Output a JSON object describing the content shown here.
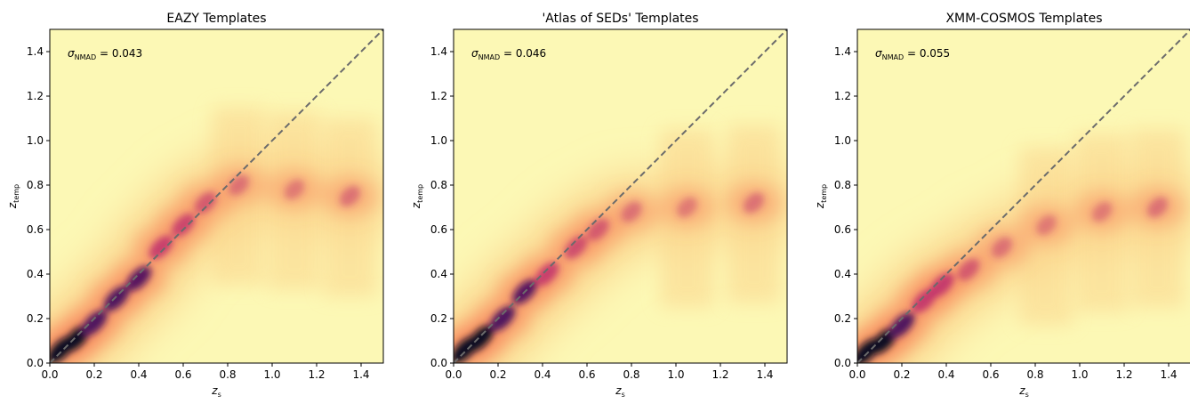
{
  "chart_data": [
    {
      "type": "heatmap",
      "title": "EAZY Templates",
      "xlabel": "z",
      "xlabel_sub": "s",
      "ylabel": "z",
      "ylabel_sub": "temp",
      "xlim": [
        0,
        1.5
      ],
      "ylim": [
        0,
        1.5
      ],
      "xticks": [
        "0.0",
        "0.2",
        "0.4",
        "0.6",
        "0.8",
        "1.0",
        "1.2",
        "1.4"
      ],
      "yticks": [
        "0.0",
        "0.2",
        "0.4",
        "0.6",
        "0.8",
        "1.0",
        "1.2",
        "1.4"
      ],
      "annotation": {
        "symbol": "σ",
        "sub": "NMAD",
        "text": " = 0.043"
      },
      "one_to_one_line": [
        [
          0,
          0
        ],
        [
          1.5,
          1.5
        ]
      ],
      "density_ridge": [
        {
          "zs": 0.05,
          "ztemp": 0.06,
          "intensity": 1.0
        },
        {
          "zs": 0.12,
          "ztemp": 0.11,
          "intensity": 1.0
        },
        {
          "zs": 0.2,
          "ztemp": 0.18,
          "intensity": 0.85
        },
        {
          "zs": 0.3,
          "ztemp": 0.29,
          "intensity": 0.8
        },
        {
          "zs": 0.4,
          "ztemp": 0.38,
          "intensity": 0.75
        },
        {
          "zs": 0.5,
          "ztemp": 0.52,
          "intensity": 0.65
        },
        {
          "zs": 0.6,
          "ztemp": 0.62,
          "intensity": 0.6
        },
        {
          "zs": 0.7,
          "ztemp": 0.72,
          "intensity": 0.45
        },
        {
          "zs": 0.85,
          "ztemp": 0.8,
          "intensity": 0.3
        },
        {
          "zs": 1.1,
          "ztemp": 0.78,
          "intensity": 0.25
        },
        {
          "zs": 1.35,
          "ztemp": 0.75,
          "intensity": 0.3
        }
      ]
    },
    {
      "type": "heatmap",
      "title": "'Atlas of SEDs' Templates",
      "xlabel": "z",
      "xlabel_sub": "s",
      "ylabel": "z",
      "ylabel_sub": "temp",
      "xlim": [
        0,
        1.5
      ],
      "ylim": [
        0,
        1.5
      ],
      "xticks": [
        "0.0",
        "0.2",
        "0.4",
        "0.6",
        "0.8",
        "1.0",
        "1.2",
        "1.4"
      ],
      "yticks": [
        "0.0",
        "0.2",
        "0.4",
        "0.6",
        "0.8",
        "1.0",
        "1.2",
        "1.4"
      ],
      "annotation": {
        "symbol": "σ",
        "sub": "NMAD",
        "text": " = 0.046"
      },
      "one_to_one_line": [
        [
          0,
          0
        ],
        [
          1.5,
          1.5
        ]
      ],
      "density_ridge": [
        {
          "zs": 0.05,
          "ztemp": 0.06,
          "intensity": 1.0
        },
        {
          "zs": 0.12,
          "ztemp": 0.11,
          "intensity": 1.0
        },
        {
          "zs": 0.22,
          "ztemp": 0.2,
          "intensity": 0.8
        },
        {
          "zs": 0.32,
          "ztemp": 0.32,
          "intensity": 0.75
        },
        {
          "zs": 0.42,
          "ztemp": 0.4,
          "intensity": 0.65
        },
        {
          "zs": 0.55,
          "ztemp": 0.52,
          "intensity": 0.55
        },
        {
          "zs": 0.65,
          "ztemp": 0.6,
          "intensity": 0.45
        },
        {
          "zs": 0.8,
          "ztemp": 0.68,
          "intensity": 0.3
        },
        {
          "zs": 1.05,
          "ztemp": 0.7,
          "intensity": 0.25
        },
        {
          "zs": 1.35,
          "ztemp": 0.72,
          "intensity": 0.3
        }
      ]
    },
    {
      "type": "heatmap",
      "title": "XMM-COSMOS Templates",
      "xlabel": "z",
      "xlabel_sub": "s",
      "ylabel": "z",
      "ylabel_sub": "temp",
      "xlim": [
        0,
        1.5
      ],
      "ylim": [
        0,
        1.5
      ],
      "xticks": [
        "0.0",
        "0.2",
        "0.4",
        "0.6",
        "0.8",
        "1.0",
        "1.2",
        "1.4"
      ],
      "yticks": [
        "0.0",
        "0.2",
        "0.4",
        "0.6",
        "0.8",
        "1.0",
        "1.2",
        "1.4"
      ],
      "annotation": {
        "symbol": "σ",
        "sub": "NMAD",
        "text": " = 0.055"
      },
      "one_to_one_line": [
        [
          0,
          0
        ],
        [
          1.5,
          1.5
        ]
      ],
      "density_ridge": [
        {
          "zs": 0.04,
          "ztemp": 0.05,
          "intensity": 1.0
        },
        {
          "zs": 0.12,
          "ztemp": 0.1,
          "intensity": 0.95
        },
        {
          "zs": 0.2,
          "ztemp": 0.17,
          "intensity": 0.8
        },
        {
          "zs": 0.3,
          "ztemp": 0.28,
          "intensity": 0.7
        },
        {
          "zs": 0.38,
          "ztemp": 0.35,
          "intensity": 0.7
        },
        {
          "zs": 0.5,
          "ztemp": 0.42,
          "intensity": 0.45
        },
        {
          "zs": 0.65,
          "ztemp": 0.52,
          "intensity": 0.3
        },
        {
          "zs": 0.85,
          "ztemp": 0.62,
          "intensity": 0.25
        },
        {
          "zs": 1.1,
          "ztemp": 0.68,
          "intensity": 0.25
        },
        {
          "zs": 1.35,
          "ztemp": 0.7,
          "intensity": 0.3
        }
      ]
    }
  ],
  "colors": {
    "background": "#fcf8b5",
    "low": "#fbd58d",
    "mid": "#f88a5f",
    "high": "#c0306d",
    "peak": "#50125f",
    "max": "#0b0724",
    "diagonal": "#6b6b6b"
  }
}
